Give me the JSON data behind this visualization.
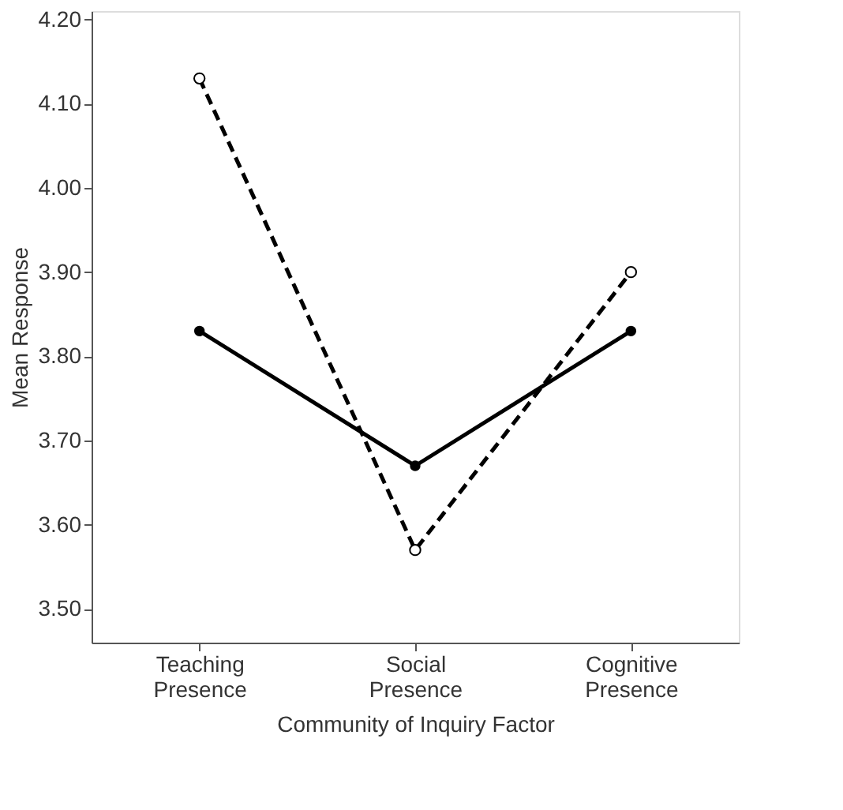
{
  "chart_data": {
    "type": "line",
    "xlabel": "Community of Inquiry Factor",
    "ylabel": "Mean Response",
    "categories": [
      "Teaching Presence",
      "Social Presence",
      "Cognitive Presence"
    ],
    "series": [
      {
        "color": "#000000",
        "values": [
          3.83,
          3.67,
          3.83
        ],
        "line_style": "solid"
      },
      {
        "color": "#000000",
        "values": [
          4.13,
          3.57,
          3.9
        ],
        "line_style": "dashed"
      }
    ],
    "ylim": [
      3.46,
      4.21
    ],
    "yticks": [
      {
        "value": 3.5,
        "label": "3.50"
      },
      {
        "value": 3.6,
        "label": "3.60"
      },
      {
        "value": 3.7,
        "label": "3.70"
      },
      {
        "value": 3.8,
        "label": "3.80"
      },
      {
        "value": 3.9,
        "label": "3.90"
      },
      {
        "value": 4.0,
        "label": "4.00"
      },
      {
        "value": 4.1,
        "label": "4.10"
      },
      {
        "value": 4.2,
        "label": "4.20"
      }
    ],
    "grid": false,
    "marker": "circle"
  }
}
